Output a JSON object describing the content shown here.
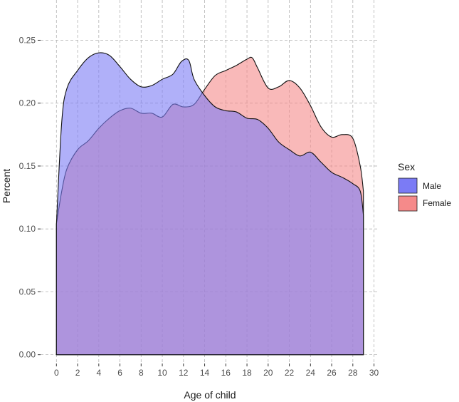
{
  "chart_data": {
    "type": "area",
    "title": "",
    "xlabel": "Age of child",
    "ylabel": "Percent",
    "xlim": [
      -1.5,
      30.5
    ],
    "ylim": [
      -0.007,
      0.282
    ],
    "x_ticks": [
      0,
      2,
      4,
      6,
      8,
      10,
      12,
      14,
      16,
      18,
      20,
      22,
      24,
      26,
      28,
      30
    ],
    "y_ticks": [
      0.0,
      0.05,
      0.1,
      0.15,
      0.2,
      0.25
    ],
    "y_tick_labels": [
      "0.00",
      "0.05",
      "0.10",
      "0.15",
      "0.20",
      "0.25"
    ],
    "grid": true,
    "grid_style": "dashed",
    "legend": {
      "title": "Sex",
      "placement": "right"
    },
    "series": [
      {
        "name": "Male",
        "color": "#7b7bf5",
        "x": [
          0,
          0.5,
          1,
          2,
          3,
          4,
          5,
          6,
          7,
          8,
          9,
          10,
          11,
          11.8,
          12.5,
          13,
          14,
          15,
          16,
          17,
          18,
          19,
          20,
          21,
          22,
          23,
          24,
          25,
          26,
          27,
          28,
          28.7,
          29
        ],
        "values": [
          0.104,
          0.185,
          0.212,
          0.226,
          0.236,
          0.24,
          0.238,
          0.229,
          0.219,
          0.213,
          0.214,
          0.219,
          0.223,
          0.233,
          0.234,
          0.219,
          0.206,
          0.197,
          0.194,
          0.193,
          0.188,
          0.187,
          0.18,
          0.169,
          0.163,
          0.158,
          0.161,
          0.153,
          0.145,
          0.141,
          0.136,
          0.13,
          0.111
        ]
      },
      {
        "name": "Female",
        "color": "#f58a8a",
        "x": [
          0,
          0.5,
          1,
          2,
          3,
          4,
          5,
          6,
          7,
          8,
          9,
          10,
          11,
          12,
          13,
          14,
          15,
          16,
          17,
          18,
          18.5,
          19,
          20,
          21,
          22,
          23,
          24,
          25,
          26,
          27,
          28,
          28.7,
          29
        ],
        "values": [
          0.104,
          0.13,
          0.148,
          0.163,
          0.17,
          0.18,
          0.188,
          0.194,
          0.196,
          0.192,
          0.192,
          0.189,
          0.199,
          0.197,
          0.199,
          0.211,
          0.222,
          0.226,
          0.23,
          0.235,
          0.236,
          0.228,
          0.212,
          0.213,
          0.218,
          0.212,
          0.198,
          0.181,
          0.173,
          0.175,
          0.172,
          0.15,
          0.13
        ]
      }
    ]
  }
}
